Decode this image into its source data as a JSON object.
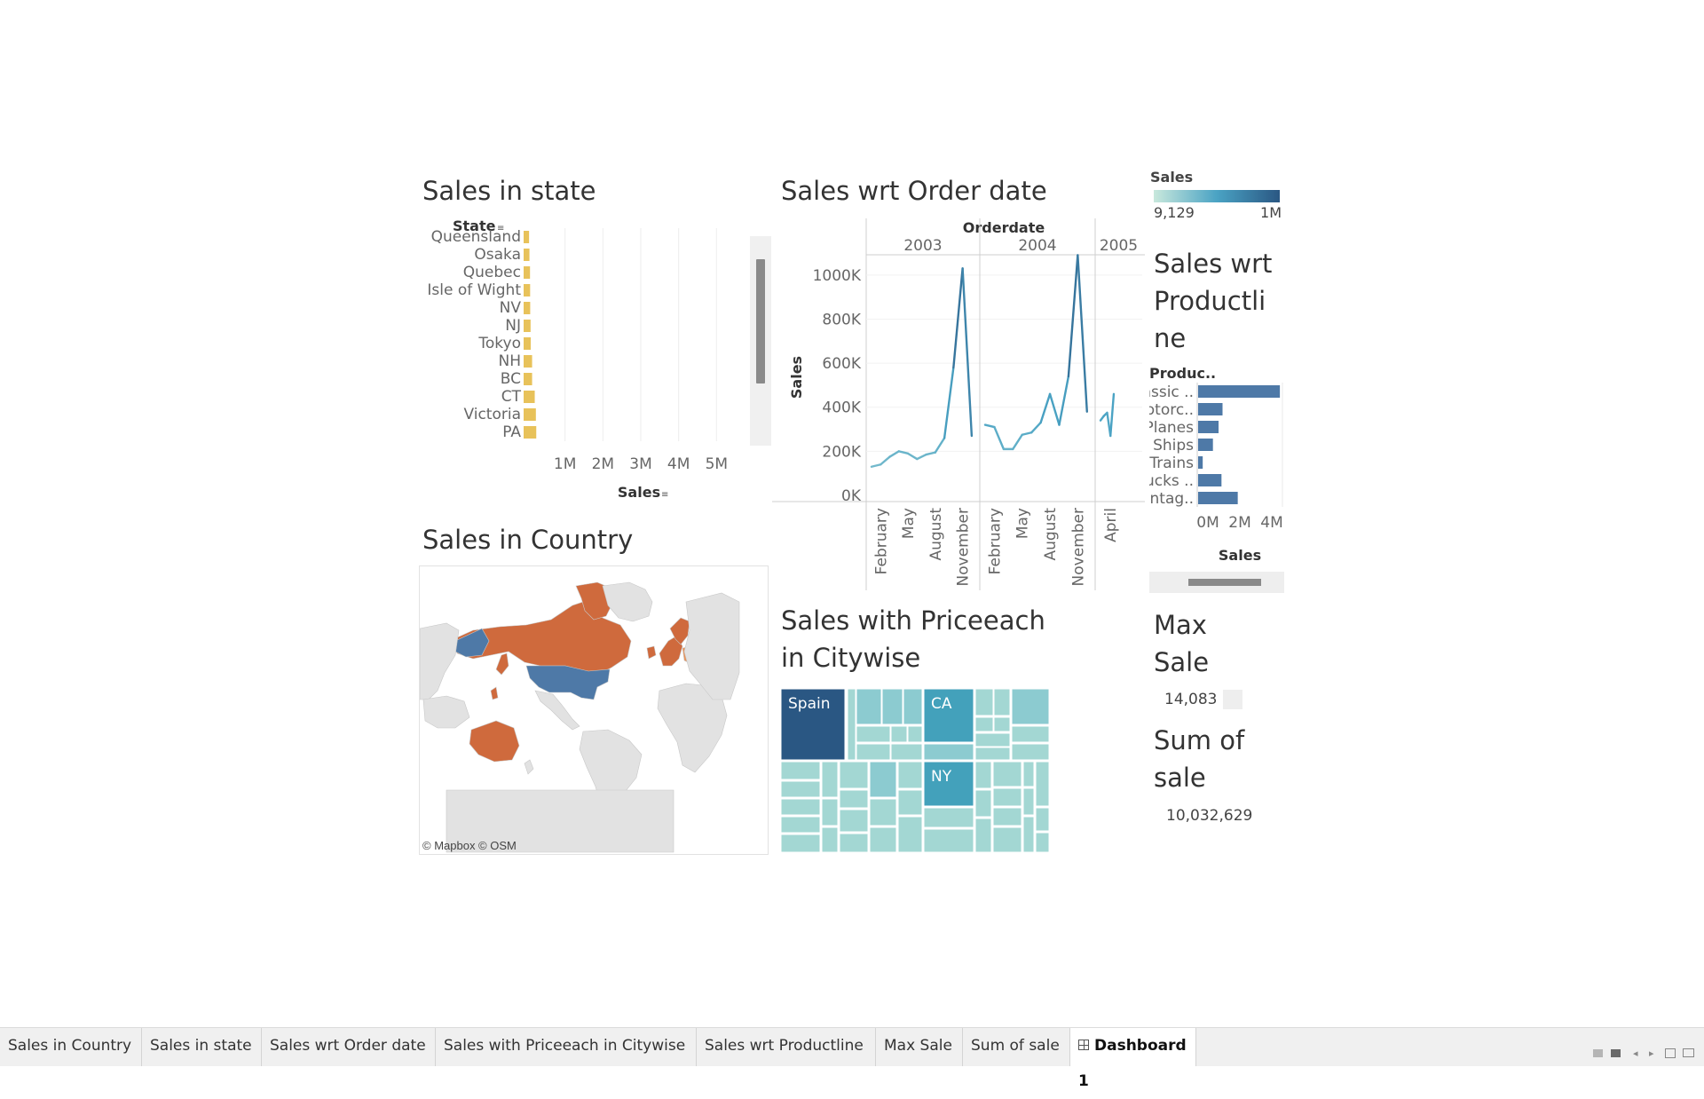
{
  "dashboard": {
    "state_title": "Sales in state",
    "order_title": "Sales wrt Order date",
    "country_title": "Sales in Country",
    "price_title_1": "Sales with Priceeach",
    "price_title_2": "in Citywise",
    "productline_title_1": "Sales wrt",
    "productline_title_2": "Productli",
    "productline_title_3": "ne",
    "max_title_1": "Max",
    "max_title_2": "Sale",
    "max_value": "14,083",
    "sum_title_1": "Sum of",
    "sum_title_2": "sale",
    "sum_value": "10,032,629",
    "map_credit": "© Mapbox © OSM",
    "legend": {
      "title": "Sales",
      "min_label": "9,129",
      "max_label": "1M",
      "color_low": "#c9e8dc",
      "color_mid": "#4aa3c4",
      "color_high": "#2a5783"
    }
  },
  "tabs": [
    {
      "label": "Sales in Country"
    },
    {
      "label": "Sales in state"
    },
    {
      "label": "Sales wrt Order date"
    },
    {
      "label": "Sales with Priceeach in Citywise"
    },
    {
      "label": "Sales wrt Productline"
    },
    {
      "label": "Max Sale"
    },
    {
      "label": "Sum of sale"
    },
    {
      "label": "Dashboard 1",
      "active": true,
      "icon": "dashboard-grid-icon"
    }
  ],
  "chart_data": [
    {
      "type": "bar",
      "orientation": "horizontal",
      "row_header": "State",
      "categories": [
        "Queensland",
        "Osaka",
        "Quebec",
        "Isle of Wight",
        "NV",
        "NJ",
        "Tokyo",
        "NH",
        "BC",
        "CT",
        "Victoria",
        "PA"
      ],
      "values": [
        50000,
        60000,
        75000,
        78000,
        80000,
        90000,
        94000,
        130000,
        130000,
        200000,
        230000,
        240000
      ],
      "xlabel": "Sales",
      "xticks": [
        "1M",
        "2M",
        "3M",
        "4M",
        "5M"
      ],
      "xlim": [
        0,
        6000000
      ],
      "color": "#e8c25a",
      "grid": true
    },
    {
      "type": "line",
      "column_header": "Orderdate",
      "ylabel": "Sales",
      "yticks": [
        "0K",
        "200K",
        "400K",
        "600K",
        "800K",
        "1000K"
      ],
      "ylim": [
        0,
        1100000
      ],
      "panels": [
        {
          "year": "2003",
          "ticks": [
            "February",
            "May",
            "August",
            "November"
          ],
          "values": [
            130000,
            140000,
            175000,
            200000,
            190000,
            165000,
            185000,
            195000,
            260000,
            580000,
            1030000,
            270000
          ]
        },
        {
          "year": "2004",
          "ticks": [
            "February",
            "May",
            "August",
            "November"
          ],
          "values": [
            320000,
            310000,
            210000,
            210000,
            275000,
            285000,
            330000,
            460000,
            320000,
            540000,
            1090000,
            380000
          ]
        },
        {
          "year": "2005",
          "ticks": [
            "April"
          ],
          "values": [
            340000,
            360000,
            375000,
            270000,
            460000
          ]
        }
      ],
      "color_scale": "sales-sequential"
    },
    {
      "type": "bar",
      "orientation": "horizontal",
      "row_header": "Produc..",
      "categories": [
        "assic ..",
        "otorc..",
        "Planes",
        "Ships",
        "Trains",
        "ucks ..",
        "intag.."
      ],
      "values": [
        3920000,
        1170000,
        980000,
        710000,
        220000,
        1120000,
        1900000
      ],
      "xlabel": "Sales",
      "xticks": [
        "0M",
        "2M",
        "4M"
      ],
      "xlim": [
        0,
        4000000
      ],
      "color": "#4e79a7"
    },
    {
      "type": "treemap",
      "labels": [
        "Spain",
        "CA",
        "NY"
      ],
      "values": [
        1215000,
        457000,
        560000
      ],
      "color_scale": "sales-sequential"
    },
    {
      "type": "map",
      "highlighted_colors": {
        "primary": "#4e79a7",
        "secondary": "#cf6a3d",
        "tertiary": "#e8945a"
      }
    }
  ]
}
